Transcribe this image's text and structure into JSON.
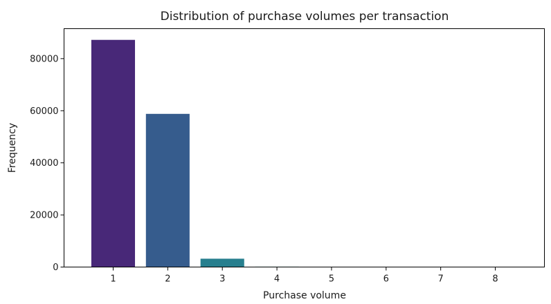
{
  "chart_data": {
    "type": "bar",
    "title": "Distribution of purchase volumes per transaction",
    "xlabel": "Purchase volume",
    "ylabel": "Frequency",
    "categories": [
      "1",
      "2",
      "3",
      "4",
      "5",
      "6",
      "7",
      "8"
    ],
    "values": [
      87200,
      58800,
      3200,
      150,
      40,
      15,
      8,
      5
    ],
    "colors": [
      "#482878",
      "#365c8d",
      "#277f8e",
      "#1fa187",
      "#4ac16d",
      "#a0da39",
      "#d2e21b",
      "#fde725"
    ],
    "yticks": [
      0,
      20000,
      40000,
      60000,
      80000
    ],
    "ylim": [
      0,
      91500
    ],
    "grid": false,
    "legend": "none"
  }
}
